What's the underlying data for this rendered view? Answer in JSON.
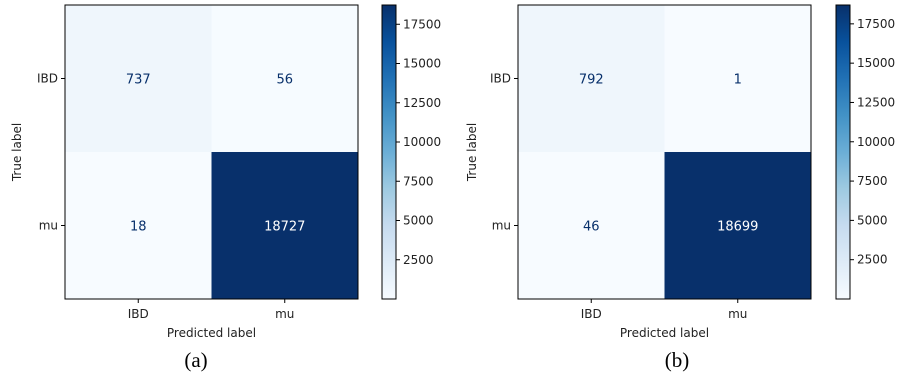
{
  "chart_data": [
    {
      "type": "heatmap",
      "caption": "(a)",
      "xlabel": "Predicted label",
      "ylabel": "True label",
      "x_categories": [
        "IBD",
        "mu"
      ],
      "y_categories": [
        "IBD",
        "mu"
      ],
      "values": [
        [
          737,
          56
        ],
        [
          18,
          18727
        ]
      ],
      "colormap": "Blues",
      "colorbar": {
        "min": 0,
        "max": 18727,
        "ticks": [
          2500,
          5000,
          7500,
          10000,
          12500,
          15000,
          17500
        ]
      },
      "grid": false
    },
    {
      "type": "heatmap",
      "caption": "(b)",
      "xlabel": "Predicted label",
      "ylabel": "True label",
      "x_categories": [
        "IBD",
        "mu"
      ],
      "y_categories": [
        "IBD",
        "mu"
      ],
      "values": [
        [
          792,
          1
        ],
        [
          46,
          18699
        ]
      ],
      "colormap": "Blues",
      "colorbar": {
        "min": 0,
        "max": 18699,
        "ticks": [
          2500,
          5000,
          7500,
          10000,
          12500,
          15000,
          17500
        ]
      },
      "grid": false
    }
  ]
}
